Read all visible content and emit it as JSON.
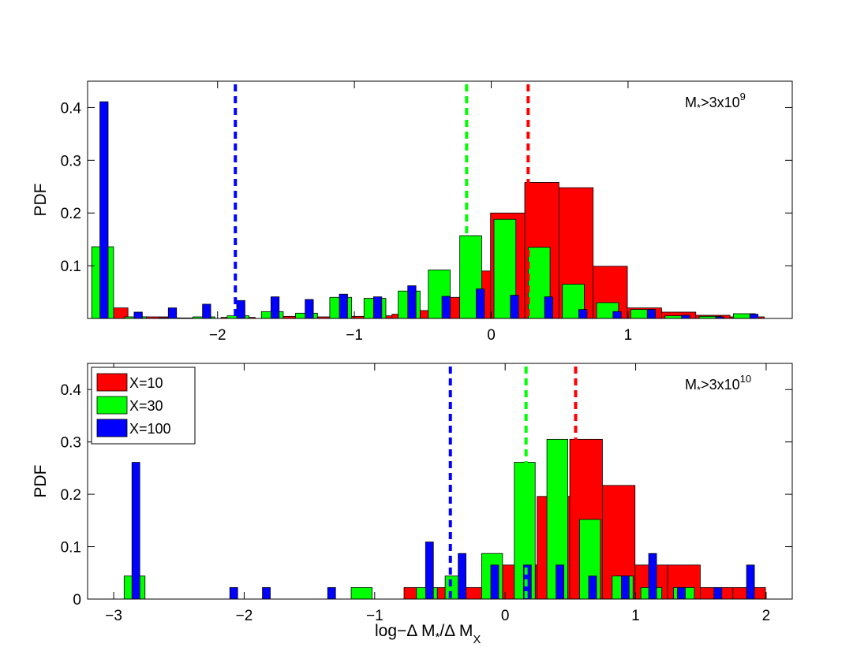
{
  "chart_data": [
    {
      "type": "bar",
      "annotation": {
        "base": "M",
        "sub": "*",
        "mid": ">3x10",
        "sup": "9"
      },
      "ylabel": "PDF",
      "xlabel": null,
      "xlim": [
        -2.95,
        2.2
      ],
      "ylim": [
        0,
        0.45
      ],
      "xticks": [
        -2,
        -1,
        0,
        1
      ],
      "yticks": [
        0.1,
        0.2,
        0.3,
        0.4
      ],
      "grid": false,
      "series": [
        {
          "name": "X=10",
          "color": "#ff0000",
          "width": 0.25,
          "median": 0.27,
          "points": [
            [
              -2.78,
              0.02
            ],
            [
              -2.45,
              0.003
            ],
            [
              -2.2,
              0.001
            ],
            [
              -1.85,
              0.002
            ],
            [
              -1.55,
              0.004
            ],
            [
              -1.3,
              0.003
            ],
            [
              -1.05,
              0.004
            ],
            [
              -0.8,
              0.005
            ],
            [
              -0.6,
              0.008
            ],
            [
              -0.45,
              0.015
            ],
            [
              -0.3,
              0.025
            ],
            [
              -0.2,
              0.04
            ],
            [
              -0.05,
              0.09
            ],
            [
              0.12,
              0.2
            ],
            [
              0.37,
              0.258
            ],
            [
              0.62,
              0.248
            ],
            [
              0.87,
              0.099
            ],
            [
              1.12,
              0.02
            ],
            [
              1.37,
              0.012
            ],
            [
              1.62,
              0.006
            ],
            [
              1.87,
              0.003
            ]
          ]
        },
        {
          "name": "X=30",
          "color": "#00ff00",
          "width": 0.16,
          "median": -0.18,
          "points": [
            [
              -2.84,
              0.136
            ],
            [
              -2.6,
              0.003
            ],
            [
              -2.35,
              0.001
            ],
            [
              -2.1,
              0.003
            ],
            [
              -1.85,
              0.005
            ],
            [
              -1.6,
              0.013
            ],
            [
              -1.35,
              0.01
            ],
            [
              -1.1,
              0.04
            ],
            [
              -0.85,
              0.038
            ],
            [
              -0.6,
              0.052
            ],
            [
              -0.38,
              0.092
            ],
            [
              -0.15,
              0.157
            ],
            [
              0.1,
              0.188
            ],
            [
              0.35,
              0.135
            ],
            [
              0.6,
              0.065
            ],
            [
              0.85,
              0.03
            ],
            [
              1.1,
              0.017
            ],
            [
              1.35,
              0.005
            ],
            [
              1.6,
              0.004
            ],
            [
              1.85,
              0.009
            ]
          ]
        },
        {
          "name": "X=100",
          "color": "#0000ff",
          "width": 0.06,
          "median": -1.87,
          "points": [
            [
              -2.83,
              0.411
            ],
            [
              -2.58,
              0.012
            ],
            [
              -2.33,
              0.02
            ],
            [
              -2.08,
              0.027
            ],
            [
              -1.83,
              0.034
            ],
            [
              -1.58,
              0.041
            ],
            [
              -1.33,
              0.036
            ],
            [
              -1.08,
              0.046
            ],
            [
              -0.83,
              0.041
            ],
            [
              -0.58,
              0.062
            ],
            [
              -0.33,
              0.042
            ],
            [
              -0.08,
              0.056
            ],
            [
              0.17,
              0.044
            ],
            [
              0.42,
              0.041
            ],
            [
              0.67,
              0.017
            ],
            [
              0.92,
              0.013
            ],
            [
              1.17,
              0.017
            ],
            [
              1.42,
              0.006
            ],
            [
              1.67,
              0.003
            ],
            [
              1.92,
              0.008
            ]
          ]
        }
      ]
    },
    {
      "type": "bar",
      "annotation": {
        "base": "M",
        "sub": "*",
        "mid": ">3x10",
        "sup": "10"
      },
      "ylabel": "PDF",
      "xlabel": {
        "base": "log−Δ M",
        "sub1": "*",
        "mid": "/Δ M",
        "sub2": "X"
      },
      "xlim": [
        -3.2,
        2.2
      ],
      "ylim": [
        0,
        0.45
      ],
      "xticks": [
        -3,
        -2,
        -1,
        0,
        1,
        2
      ],
      "yticks": [
        0,
        0.1,
        0.2,
        0.3,
        0.4
      ],
      "grid": false,
      "series": [
        {
          "name": "X=10",
          "color": "#ff0000",
          "width": 0.25,
          "median": 0.54,
          "points": [
            [
              -0.65,
              0.022
            ],
            [
              -0.45,
              0.022
            ],
            [
              -0.2,
              0.022
            ],
            [
              0.05,
              0.065
            ],
            [
              0.2,
              0.065
            ],
            [
              0.37,
              0.196
            ],
            [
              0.62,
              0.305
            ],
            [
              0.87,
              0.217
            ],
            [
              1.12,
              0.065
            ],
            [
              1.37,
              0.065
            ],
            [
              1.62,
              0.022
            ],
            [
              1.87,
              0.022
            ]
          ]
        },
        {
          "name": "X=30",
          "color": "#00ff00",
          "width": 0.16,
          "median": 0.16,
          "points": [
            [
              -2.84,
              0.044
            ],
            [
              -1.1,
              0.022
            ],
            [
              -0.6,
              0.022
            ],
            [
              -0.38,
              0.044
            ],
            [
              -0.1,
              0.087
            ],
            [
              0.15,
              0.261
            ],
            [
              0.4,
              0.305
            ],
            [
              0.65,
              0.152
            ],
            [
              0.9,
              0.044
            ],
            [
              1.12,
              0.022
            ],
            [
              1.37,
              0.022
            ]
          ]
        },
        {
          "name": "X=100",
          "color": "#0000ff",
          "width": 0.06,
          "median": -0.42,
          "points": [
            [
              -2.83,
              0.261
            ],
            [
              -2.08,
              0.022
            ],
            [
              -1.83,
              0.022
            ],
            [
              -1.33,
              0.022
            ],
            [
              -0.58,
              0.109
            ],
            [
              -0.33,
              0.087
            ],
            [
              -0.08,
              0.065
            ],
            [
              0.17,
              0.065
            ],
            [
              0.42,
              0.065
            ],
            [
              0.67,
              0.044
            ],
            [
              0.92,
              0.044
            ],
            [
              1.13,
              0.087
            ],
            [
              1.35,
              0.022
            ],
            [
              1.63,
              0.022
            ],
            [
              1.88,
              0.065
            ]
          ]
        }
      ]
    }
  ],
  "legend": {
    "placement": "top-left of lower panel",
    "entries": [
      {
        "label": "X=10",
        "color": "#ff0000"
      },
      {
        "label": "X=30",
        "color": "#00ff00"
      },
      {
        "label": "X=100",
        "color": "#0000ff"
      }
    ]
  }
}
